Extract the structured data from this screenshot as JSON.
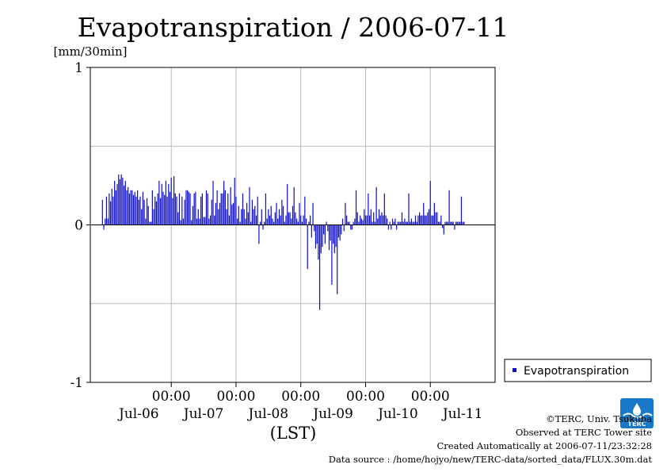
{
  "chart_data": {
    "type": "bar",
    "title": "Evapotranspiration / 2006-07-11",
    "ylabel": "[mm/30min]",
    "ylim": [
      -1,
      1
    ],
    "y_ticks": [
      {
        "value": 1,
        "label": "1"
      },
      {
        "value": 0,
        "label": "0"
      },
      {
        "value": -1,
        "label": "-1"
      }
    ],
    "y_gridlines": [
      0.5,
      -0.5
    ],
    "x_start": "2006-07-05T18:00",
    "x_end": "2006-07-11T24:00",
    "time_ticks": [
      {
        "time": "2006-07-07T00:00",
        "label": "00:00"
      },
      {
        "time": "2006-07-08T00:00",
        "label": "00:00"
      },
      {
        "time": "2006-07-09T00:00",
        "label": "00:00"
      },
      {
        "time": "2006-07-10T00:00",
        "label": "00:00"
      },
      {
        "time": "2006-07-11T00:00",
        "label": "00:00"
      }
    ],
    "day_labels": [
      {
        "time": "2006-07-06T12:00",
        "label": "Jul-06"
      },
      {
        "time": "2006-07-07T12:00",
        "label": "Jul-07"
      },
      {
        "time": "2006-07-08T12:00",
        "label": "Jul-08"
      },
      {
        "time": "2006-07-09T12:00",
        "label": "Jul-09"
      },
      {
        "time": "2006-07-10T12:00",
        "label": "Jul-10"
      },
      {
        "time": "2006-07-11T12:00",
        "label": "Jul-11"
      }
    ],
    "xlabel": "(LST)",
    "grid": true,
    "legend_position": "bottom-right",
    "series": [
      {
        "name": "Evapotranspiration",
        "color": "#1010cc",
        "interval_minutes": 30,
        "first_time": "2006-07-05T22:30",
        "values": [
          0.16,
          -0.03,
          0.04,
          0.18,
          0.04,
          0.2,
          0.15,
          0.23,
          0.18,
          0.28,
          0.22,
          0.26,
          0.32,
          0.29,
          0.32,
          0.3,
          0.25,
          0.28,
          0.22,
          0.24,
          0.2,
          0.22,
          0.22,
          0.19,
          0.21,
          0.18,
          0.22,
          0.16,
          0.18,
          0.1,
          0.21,
          0.16,
          0.04,
          0.17,
          0.12,
          0.02,
          0.02,
          0.22,
          0.1,
          0.18,
          0.15,
          0.2,
          0.28,
          0.17,
          0.26,
          0.21,
          0.19,
          0.28,
          0.18,
          0.26,
          0.21,
          0.3,
          0.17,
          0.31,
          0.2,
          0.18,
          0.08,
          0.2,
          0.03,
          0.18,
          0.04,
          0.16,
          0.22,
          0.22,
          0.21,
          0.2,
          0.03,
          0.12,
          0.2,
          0.21,
          0.04,
          0.1,
          0.04,
          0.18,
          0.2,
          0.05,
          0.05,
          0.22,
          0.2,
          0.04,
          0.06,
          0.16,
          0.28,
          0.06,
          0.14,
          0.22,
          0.1,
          0.14,
          0.2,
          0.2,
          0.28,
          0.22,
          0.1,
          0.2,
          0.06,
          0.24,
          0.13,
          0.14,
          0.3,
          0.18,
          0.04,
          0.12,
          0.02,
          0.1,
          0.2,
          0.1,
          0.04,
          0.14,
          0.08,
          0.24,
          0.02,
          0.16,
          0.1,
          0.12,
          0.06,
          0.18,
          -0.12,
          0.02,
          0.1,
          -0.03,
          0.02,
          0.2,
          0.04,
          0.1,
          0.06,
          0.12,
          0.04,
          0.02,
          0.08,
          0.14,
          0.04,
          0.1,
          0.06,
          0.16,
          0.12,
          0.02,
          0.06,
          0.26,
          0.08,
          0.08,
          0.04,
          0.12,
          0.24,
          0.08,
          0.04,
          0.02,
          0.14,
          0.06,
          0.02,
          0.06,
          0.18,
          0.04,
          -0.28,
          0.02,
          0.06,
          -0.08,
          0.14,
          -0.04,
          -0.15,
          -0.12,
          -0.22,
          -0.54,
          -0.18,
          -0.14,
          -0.06,
          -0.12,
          0.02,
          -0.04,
          -0.16,
          -0.1,
          -0.38,
          -0.12,
          -0.18,
          -0.14,
          -0.44,
          -0.08,
          -0.1,
          -0.06,
          0.04,
          -0.04,
          0.14,
          0.06,
          0.02,
          0.02,
          -0.03,
          -0.03,
          0.02,
          0.04,
          0.22,
          0.08,
          0.02,
          0.06,
          0.04,
          0.03,
          0.1,
          0.06,
          0.06,
          0.2,
          0.06,
          0.1,
          0.02,
          0.08,
          0.02,
          0.24,
          0.04,
          0.1,
          0.06,
          0.08,
          0.06,
          0.2,
          0.06,
          0.04,
          -0.03,
          0.02,
          -0.03,
          0.04,
          0.02,
          0.04,
          -0.03,
          0.02,
          0.02,
          0.02,
          0.08,
          0.02,
          0.04,
          0.02,
          0.02,
          0.2,
          0.02,
          0.04,
          0.02,
          0.02,
          0.06,
          0.02,
          0.06,
          0.08,
          0.06,
          0.06,
          0.14,
          0.06,
          0.06,
          0.08,
          0.1,
          0.28,
          0.06,
          0.06,
          0.14,
          0.08,
          0.08,
          0.02,
          0.02,
          0.06,
          -0.02,
          -0.06,
          0.02,
          0.02,
          0.02,
          0.22,
          0.02,
          0.02,
          0.02,
          -0.03,
          0.02,
          0.02,
          0.02,
          0.02,
          0.18,
          0.02,
          0.02
        ]
      }
    ]
  },
  "credits": {
    "copyright": "©TERC, Univ. Tsukuba",
    "observed": "Observed at TERC Tower site",
    "created": "Created Automatically at 2006-07-11/23:32:28",
    "source": "Data source : /home/hojyo/new/TERC-data/sorted_data/FLUX.30m.dat"
  },
  "logo": {
    "text": "TERC",
    "color": "#1a78c8"
  }
}
